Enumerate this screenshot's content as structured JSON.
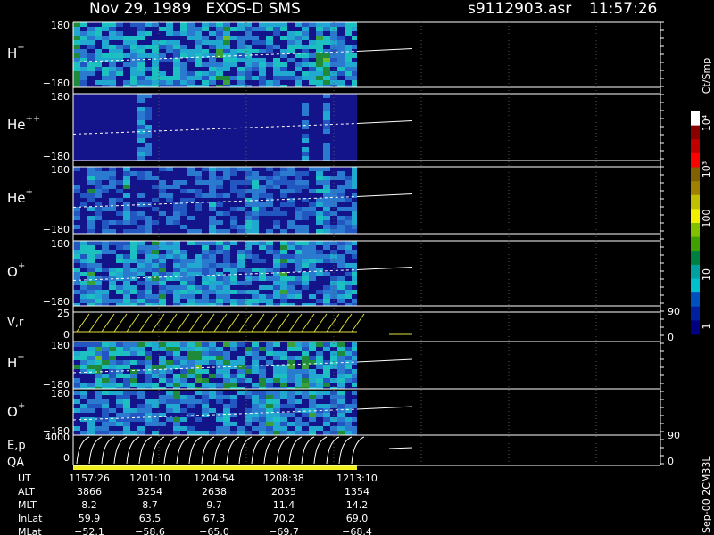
{
  "header": {
    "title": "Nov 29, 1989   EXOS-D SMS",
    "file": "s9112903.asr",
    "time": "11:57:26"
  },
  "panels": [
    {
      "label": "H",
      "charge": "+",
      "top": "180",
      "bottom": "−180"
    },
    {
      "label": "He",
      "charge": "++",
      "top": "180",
      "bottom": "−180"
    },
    {
      "label": "He",
      "charge": "+",
      "top": "180",
      "bottom": "−180"
    },
    {
      "label": "O",
      "charge": "+",
      "top": "180",
      "bottom": "−180"
    },
    {
      "label": "H",
      "charge": "+",
      "top": "180",
      "bottom": "−180"
    },
    {
      "label": "O",
      "charge": "+",
      "top": "180",
      "bottom": "−180"
    }
  ],
  "vr": {
    "label": "V,r",
    "top": "25",
    "zero": "0",
    "right_top": "90",
    "right_bottom": "0"
  },
  "ep": {
    "label": "E,p",
    "qa": "QA",
    "top": "4000",
    "zero": "0",
    "right_top": "90",
    "right_bottom": "0"
  },
  "colorbar": {
    "unit": "Ct/Smp",
    "labels": [
      "10⁴",
      "10³",
      "100",
      "10",
      "1"
    ]
  },
  "ephemeris": {
    "rows": [
      [
        "UT",
        "1157:26",
        "1201:10",
        "1204:54",
        "1208:38",
        "1213:10"
      ],
      [
        "ALT",
        "3866",
        "3254",
        "2638",
        "2035",
        "1354"
      ],
      [
        "MLT",
        "8.2",
        "8.7",
        "9.7",
        "11.4",
        "14.2"
      ],
      [
        "InLat",
        "59.9",
        "63.5",
        "67.3",
        "70.2",
        "69.0"
      ],
      [
        "MLat",
        "−52.1",
        "−58.6",
        "−65.0",
        "−69.7",
        "−68.4"
      ]
    ]
  },
  "footer": "Sep-00 2CM33L"
}
